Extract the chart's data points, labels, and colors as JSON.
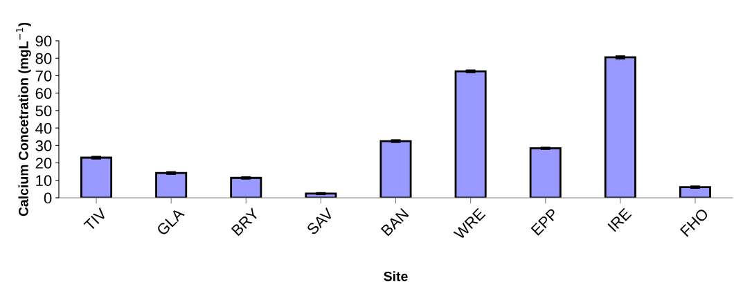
{
  "chart_data": {
    "type": "bar",
    "xlabel": "Site",
    "ylabel": "Calcium Concetration (mgL$^{−1}$)",
    "categories": [
      "TIV",
      "GLA",
      "BRY",
      "SAV",
      "BAN",
      "WRE",
      "EPP",
      "IRE",
      "FHO"
    ],
    "values": [
      23.0,
      14.2,
      11.4,
      2.4,
      32.5,
      72.5,
      28.4,
      80.5,
      6.1
    ],
    "errors": [
      0.5,
      0.5,
      0.4,
      0.3,
      0.5,
      0.5,
      0.4,
      0.6,
      0.4
    ],
    "color": "#9999ff",
    "ylim": [
      0,
      90
    ],
    "yticks": [
      0,
      10,
      20,
      30,
      40,
      50,
      60,
      70,
      80,
      90
    ],
    "grid": false,
    "legend": false
  }
}
